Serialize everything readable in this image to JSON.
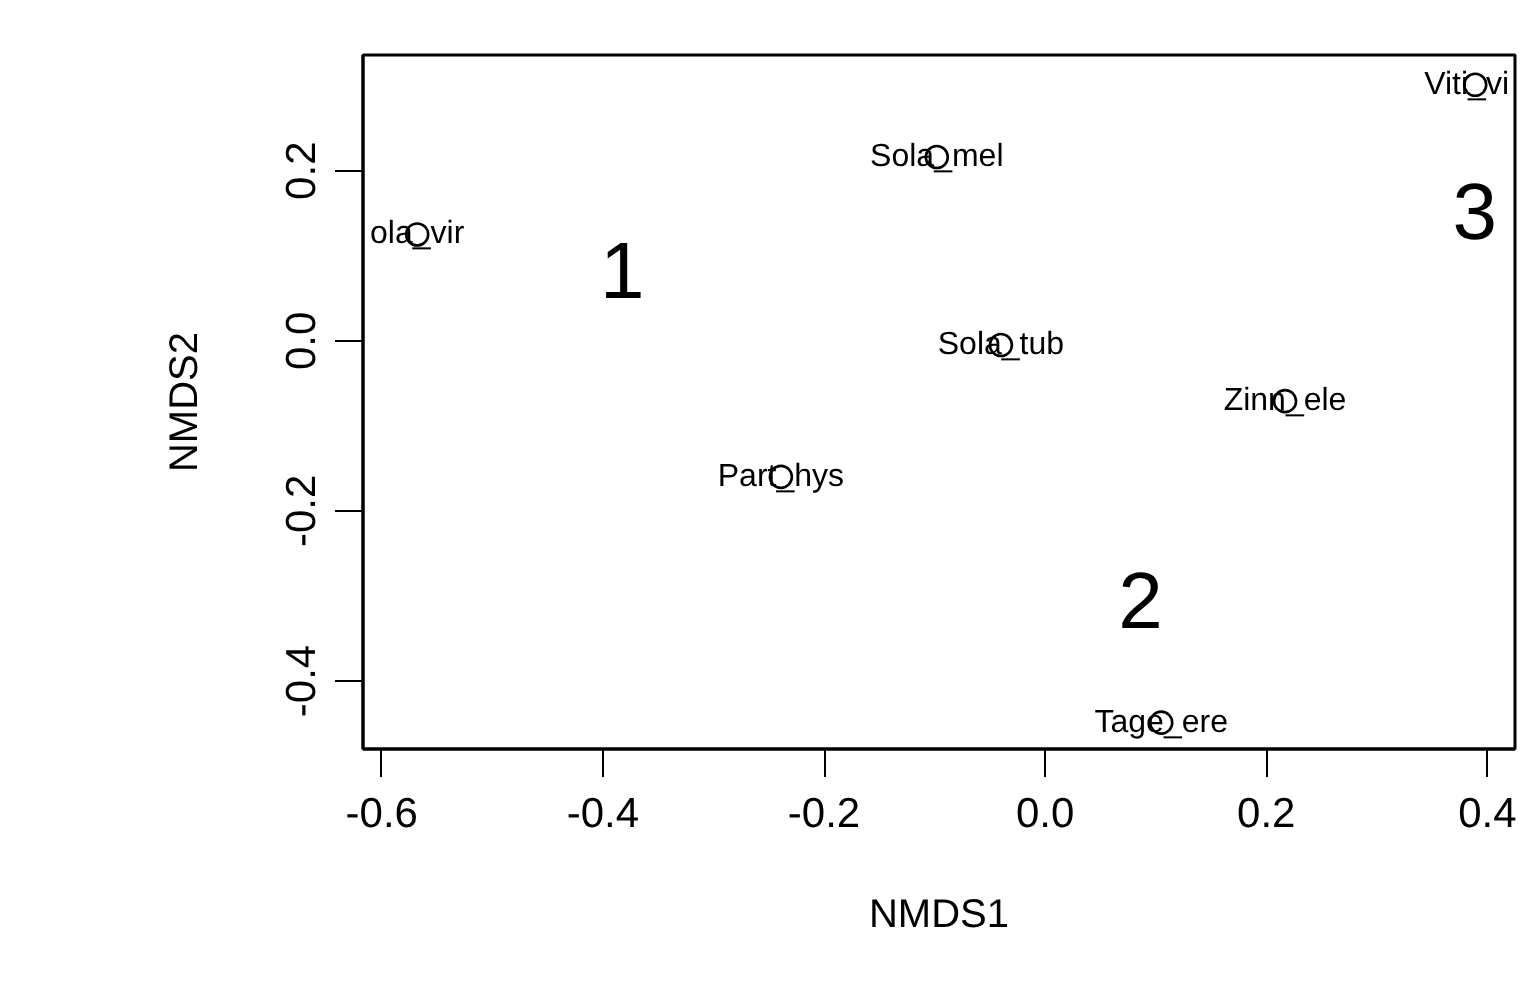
{
  "chart_data": {
    "type": "scatter",
    "xlabel": "NMDS1",
    "ylabel": "NMDS2",
    "xlim": [
      -0.617,
      0.425
    ],
    "ylim": [
      -0.48,
      0.336
    ],
    "xticks": [
      -0.6,
      -0.4,
      -0.2,
      {
        "value": 0,
        "label": "0.0"
      },
      0.2,
      0.4
    ],
    "yticks": [
      -0.4,
      -0.2,
      {
        "value": 0,
        "label": "0.0"
      },
      0.2
    ],
    "grid": false,
    "marker": "circle",
    "series": [
      {
        "color": "#000000",
        "x": [
          -0.568,
          -0.098,
          -0.04,
          -0.239,
          0.217,
          0.105,
          0.389
        ],
        "values": [
          0.125,
          0.216,
          -0.005,
          -0.16,
          -0.071,
          -0.449,
          0.301
        ]
      }
    ],
    "annotations": [
      {
        "text": "ola_vir",
        "x": -0.568,
        "y": 0.125
      },
      {
        "text": "Sola_mel",
        "x": -0.098,
        "y": 0.216
      },
      {
        "text": "Sola_tub",
        "x": -0.04,
        "y": -0.005
      },
      {
        "text": "Part_hys",
        "x": -0.239,
        "y": -0.16
      },
      {
        "text": "Zinn_ele",
        "x": 0.217,
        "y": -0.071
      },
      {
        "text": "Tage_ere",
        "x": 0.105,
        "y": -0.449
      },
      {
        "text": "Viti_vi",
        "x": 0.389,
        "y": 0.301
      },
      "1",
      "2",
      "3"
    ]
  }
}
